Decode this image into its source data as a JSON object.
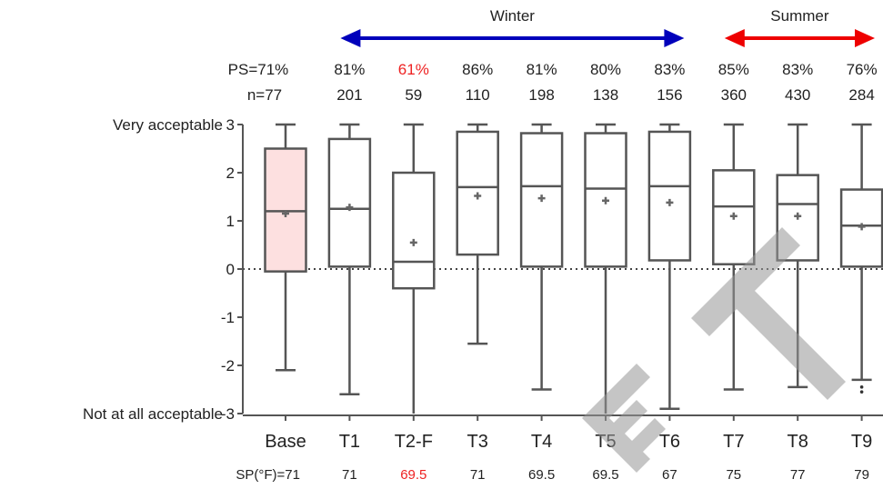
{
  "chart_data": {
    "type": "box",
    "categories": [
      "Base",
      "T1",
      "T2-F",
      "T3",
      "T4",
      "T5",
      "T6",
      "T7",
      "T8",
      "T9"
    ],
    "y_ticks": [
      3,
      2,
      1,
      0,
      -1,
      -2,
      -3
    ],
    "y_tick_labels": [
      "3",
      "2",
      "1",
      "0",
      "-1",
      "-2",
      "-3"
    ],
    "ylim": [
      -3,
      3
    ],
    "y_end_labels": {
      "top": "Very acceptable",
      "bottom": "Not at all acceptable"
    },
    "ps_prefix": "PS=",
    "n_prefix": "n=",
    "sp_label": "SP(°F)=",
    "ps": [
      "71%",
      "81%",
      "61%",
      "86%",
      "81%",
      "80%",
      "83%",
      "85%",
      "83%",
      "76%"
    ],
    "n": [
      "77",
      "201",
      "59",
      "110",
      "198",
      "138",
      "156",
      "360",
      "430",
      "284"
    ],
    "sp": [
      "71",
      "71",
      "69.5",
      "71",
      "69.5",
      "69.5",
      "67",
      "75",
      "77",
      "79"
    ],
    "highlight_index": 2,
    "boxes": [
      {
        "whisker_low": -2.1,
        "q1": -0.05,
        "median": 1.2,
        "q3": 2.5,
        "whisker_high": 3,
        "mean": 1.15
      },
      {
        "whisker_low": -2.6,
        "q1": 0.05,
        "median": 1.25,
        "q3": 2.7,
        "whisker_high": 3,
        "mean": 1.28
      },
      {
        "whisker_low": -3,
        "q1": -0.4,
        "median": 0.15,
        "q3": 2.0,
        "whisker_high": 3,
        "mean": 0.55
      },
      {
        "whisker_low": -1.55,
        "q1": 0.3,
        "median": 1.7,
        "q3": 2.85,
        "whisker_high": 3,
        "mean": 1.52
      },
      {
        "whisker_low": -2.5,
        "q1": 0.05,
        "median": 1.72,
        "q3": 2.82,
        "whisker_high": 3,
        "mean": 1.47
      },
      {
        "whisker_low": -3,
        "q1": 0.05,
        "median": 1.67,
        "q3": 2.82,
        "whisker_high": 3,
        "mean": 1.42
      },
      {
        "whisker_low": -2.9,
        "q1": 0.18,
        "median": 1.72,
        "q3": 2.85,
        "whisker_high": 3,
        "mean": 1.38
      },
      {
        "whisker_low": -2.5,
        "q1": 0.1,
        "median": 1.3,
        "q3": 2.05,
        "whisker_high": 3,
        "mean": 1.1
      },
      {
        "whisker_low": -2.45,
        "q1": 0.18,
        "median": 1.35,
        "q3": 1.95,
        "whisker_high": 3,
        "mean": 1.1
      },
      {
        "whisker_low": -2.3,
        "q1": 0.05,
        "median": 0.9,
        "q3": 1.65,
        "whisker_high": 3,
        "mean": 0.88,
        "outliers": [
          -2.45,
          -2.55
        ]
      }
    ],
    "seasons": [
      {
        "label": "Winter",
        "from": "T1",
        "to": "T6",
        "color": "#0000bb"
      },
      {
        "label": "Summer",
        "from": "T7",
        "to": "T9",
        "color": "#ee0000"
      }
    ],
    "colors": {
      "base_fill": "#fde0e0",
      "box_stroke": "#555555",
      "highlight_text": "#ee2222",
      "text": "#222222",
      "mean_marker": "#666666"
    },
    "watermark_text": "ET"
  }
}
